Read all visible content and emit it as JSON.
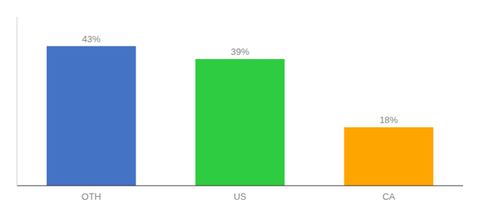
{
  "chart_data": {
    "type": "bar",
    "categories": [
      "OTH",
      "US",
      "CA"
    ],
    "values": [
      43,
      39,
      18
    ],
    "value_labels": [
      "43%",
      "39%",
      "18%"
    ],
    "colors": [
      "#4472C4",
      "#2ECC40",
      "#FFA500"
    ],
    "ylim": [
      0,
      52
    ],
    "data_labels": true,
    "tick_labels": "x",
    "grid": false
  }
}
